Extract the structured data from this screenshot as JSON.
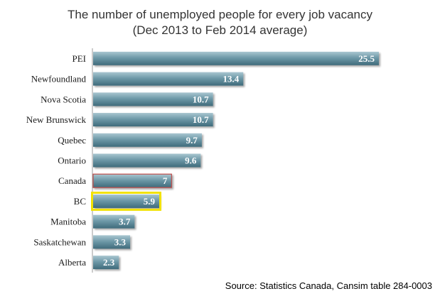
{
  "chart_data": {
    "type": "bar",
    "orientation": "horizontal",
    "title": "The number of unemployed people for every job vacancy",
    "subtitle": "(Dec 2013 to Feb 2014 average)",
    "categories": [
      "PEI",
      "Newfoundland",
      "Nova Scotia",
      "New Brunswick",
      "Quebec",
      "Ontario",
      "Canada",
      "BC",
      "Manitoba",
      "Saskatchewan",
      "Alberta"
    ],
    "values": [
      25.5,
      13.4,
      10.7,
      10.7,
      9.7,
      9.6,
      7,
      5.9,
      3.7,
      3.3,
      2.3
    ],
    "value_labels": [
      "25.5",
      "13.4",
      "10.7",
      "10.7",
      "9.7",
      "9.6",
      "7",
      "5.9",
      "3.7",
      "3.3",
      "2.3"
    ],
    "xlim": [
      0,
      25.5
    ],
    "grid": false,
    "legend": "none",
    "colors": {
      "bar_top": "#a9c6d0",
      "bar_mid": "#6e99a8",
      "bar_bottom": "#3f6b7b",
      "highlight_canada": "#c0504d",
      "highlight_bc": "#f2e200"
    }
  },
  "source": "Source: Statistics Canada, Cansim table 284-0003"
}
